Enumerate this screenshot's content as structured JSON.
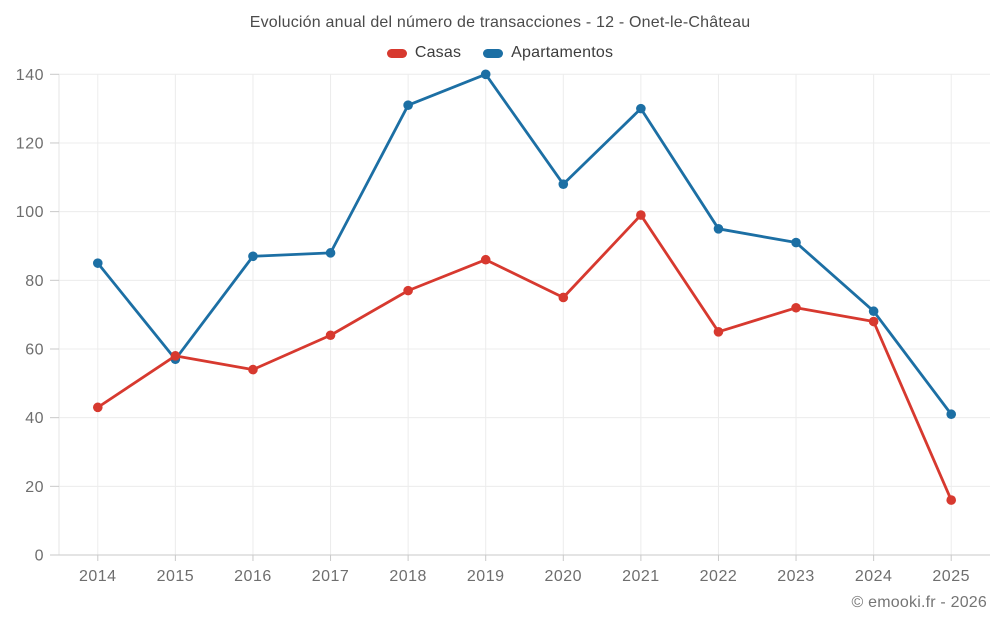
{
  "title": "Evolución anual del número de transacciones - 12 - Onet-le-Château",
  "legend": [
    {
      "label": "Casas",
      "color": "#d7392f"
    },
    {
      "label": "Apartamentos",
      "color": "#1c6fa4"
    }
  ],
  "footer": "© emooki.fr - 2026",
  "chart_data": {
    "type": "line",
    "title": "Evolución anual del número de transacciones - 12 - Onet-le-Château",
    "x": [
      "2014",
      "2015",
      "2016",
      "2017",
      "2018",
      "2019",
      "2020",
      "2021",
      "2022",
      "2023",
      "2024",
      "2025"
    ],
    "series": [
      {
        "name": "Casas",
        "color": "#d7392f",
        "values": [
          43,
          58,
          54,
          64,
          77,
          86,
          75,
          99,
          65,
          72,
          68,
          16
        ]
      },
      {
        "name": "Apartamentos",
        "color": "#1c6fa4",
        "values": [
          85,
          57,
          87,
          88,
          131,
          140,
          108,
          130,
          95,
          91,
          71,
          41
        ]
      }
    ],
    "xlabel": "",
    "ylabel": "",
    "ylim": [
      0,
      140
    ],
    "yticks": [
      0,
      20,
      40,
      60,
      80,
      100,
      120,
      140
    ],
    "grid": true,
    "legend_position": "top",
    "colors": {
      "gridline": "#ececec",
      "axis_line": "#c9c9c9",
      "left_axis_line": "#e6e6e6",
      "tick_label": "#6e6e6e"
    }
  }
}
